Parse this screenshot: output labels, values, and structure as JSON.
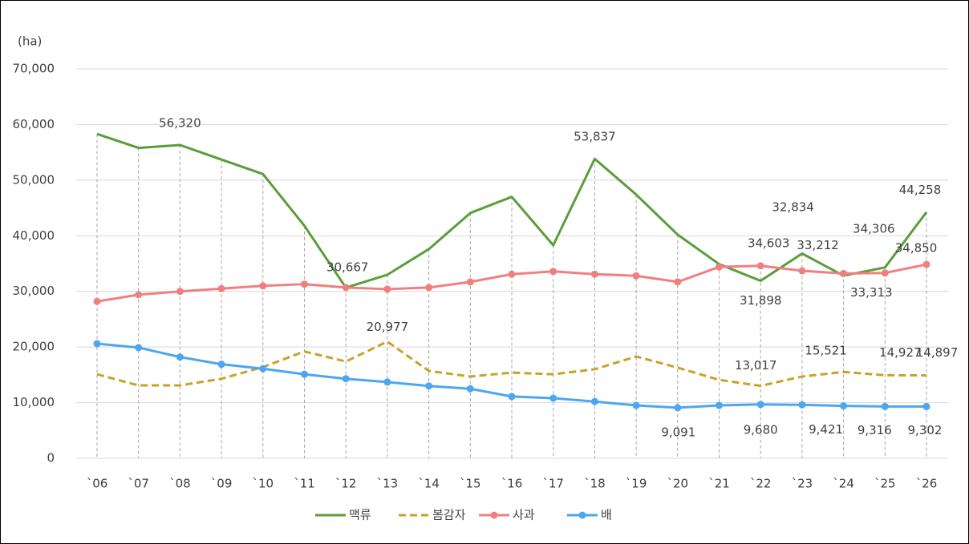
{
  "chart_data": {
    "type": "line",
    "y_axis_label": "(ha)",
    "categories": [
      "`06",
      "`07",
      "`08",
      "`09",
      "`10",
      "`11",
      "`12",
      "`13",
      "`14",
      "`15",
      "`16",
      "`17",
      "`18",
      "`19",
      "`20",
      "`21",
      "`22",
      "`23",
      "`24",
      "`25",
      "`26"
    ],
    "ylim": [
      0,
      70000
    ],
    "yticks": [
      0,
      {
        "value": 10000,
        "label": "10,000"
      },
      {
        "value": 20000,
        "label": "20,000"
      },
      {
        "value": 30000,
        "label": "30,000"
      },
      {
        "value": 40000,
        "label": "40,000"
      },
      {
        "value": 50000,
        "label": "50,000"
      },
      {
        "value": 60000,
        "label": "60,000"
      },
      {
        "value": 70000,
        "label": "70,000"
      }
    ],
    "grid": true,
    "legend": "bottom",
    "series": [
      {
        "name": "맥류",
        "color": "#5a9e3a",
        "style": "solid",
        "marker": false,
        "values": [
          58300,
          55800,
          56320,
          53700,
          51100,
          41800,
          30667,
          33000,
          37600,
          44100,
          47000,
          38300,
          53837,
          47400,
          40200,
          34900,
          31898,
          36800,
          32834,
          34306,
          44258
        ],
        "value_labels": [
          null,
          null,
          "56,320",
          null,
          null,
          null,
          "30,667",
          null,
          null,
          null,
          null,
          null,
          "53,837",
          null,
          null,
          null,
          "31,898",
          null,
          "32,834",
          "34,306",
          "44,258"
        ]
      },
      {
        "name": "봄감자",
        "color": "#c9a227",
        "style": "dashed",
        "marker": false,
        "values": [
          15100,
          13100,
          13100,
          14300,
          16400,
          19200,
          17400,
          20977,
          15700,
          14700,
          15400,
          15100,
          16000,
          18300,
          16300,
          14100,
          13017,
          14700,
          15521,
          14927,
          14897
        ],
        "value_labels": [
          null,
          null,
          null,
          null,
          null,
          null,
          null,
          "20,977",
          null,
          null,
          null,
          null,
          null,
          null,
          null,
          null,
          "13,017",
          null,
          "15,521",
          "14,927",
          "14,897"
        ]
      },
      {
        "name": "사과",
        "color": "#f08080",
        "style": "solid",
        "marker": true,
        "values": [
          28200,
          29400,
          30000,
          30500,
          31000,
          31300,
          30700,
          30400,
          30700,
          31700,
          33100,
          33600,
          33100,
          32800,
          31700,
          34400,
          34603,
          33700,
          33212,
          33313,
          34850
        ],
        "value_labels": [
          null,
          null,
          null,
          null,
          null,
          null,
          null,
          null,
          null,
          null,
          null,
          null,
          null,
          null,
          null,
          null,
          "34,603",
          null,
          "33,212",
          "33,313",
          "34,850"
        ]
      },
      {
        "name": "배",
        "color": "#4da6f0",
        "style": "solid",
        "marker": true,
        "values": [
          20600,
          19900,
          18200,
          16900,
          16100,
          15100,
          14300,
          13700,
          13000,
          12500,
          11100,
          10800,
          10200,
          9500,
          9091,
          9500,
          9680,
          9600,
          9421,
          9316,
          9302
        ],
        "value_labels": [
          null,
          null,
          null,
          null,
          null,
          null,
          null,
          null,
          null,
          null,
          null,
          null,
          null,
          null,
          "9,091",
          null,
          "9,680",
          null,
          "9,421",
          "9,316",
          "9,302"
        ]
      }
    ]
  }
}
